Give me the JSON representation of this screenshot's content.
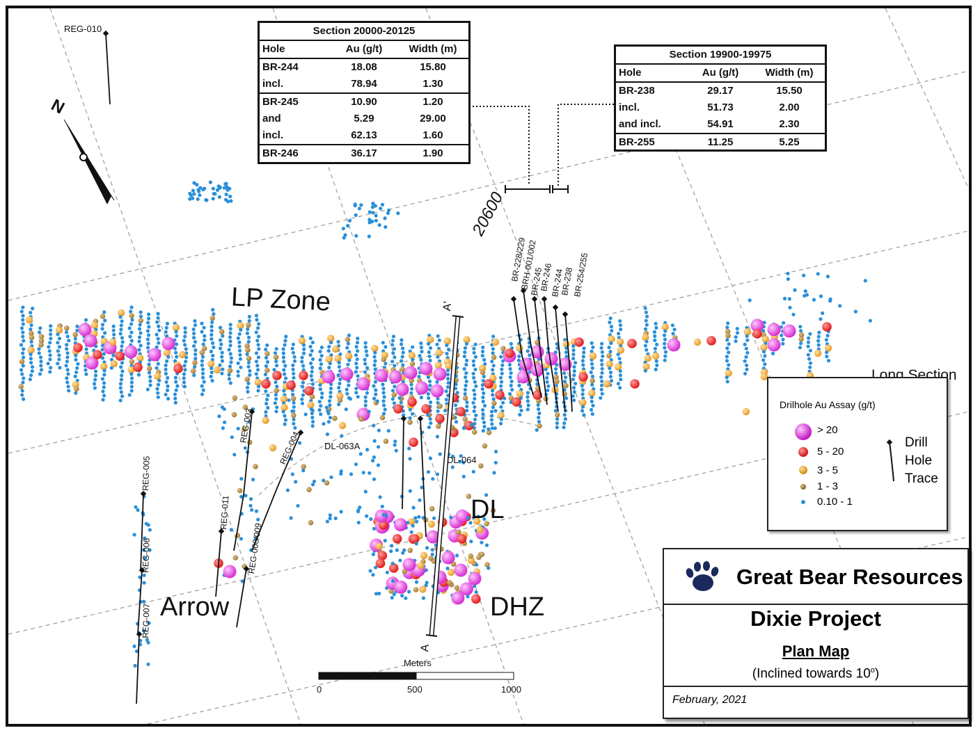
{
  "colors": {
    "gt20": "#d62fd0",
    "r5_20": "#e01b1b",
    "r3_5": "#e79a28",
    "r1_3": "#a07a35",
    "r01_1": "#2a8fd8",
    "grid": "#9a9a9a"
  },
  "table_left": {
    "title": "Section 20000-20125",
    "headers": [
      "Hole",
      "Au (g/t)",
      "Width (m)"
    ],
    "rows": [
      [
        "BR-244",
        "18.08",
        "15.80"
      ],
      [
        "incl.",
        "78.94",
        "1.30"
      ],
      [
        "BR-245",
        "10.90",
        "1.20"
      ],
      [
        "and",
        "5.29",
        "29.00"
      ],
      [
        "incl.",
        "62.13",
        "1.60"
      ],
      [
        "BR-246",
        "36.17",
        "1.90"
      ]
    ]
  },
  "table_right": {
    "title": "Section 19900-19975",
    "headers": [
      "Hole",
      "Au (g/t)",
      "Width (m)"
    ],
    "rows": [
      [
        "BR-238",
        "29.17",
        "15.50"
      ],
      [
        "incl.",
        "51.73",
        "2.00"
      ],
      [
        "and incl.",
        "54.91",
        "2.30"
      ],
      [
        "BR-255",
        "11.25",
        "5.25"
      ]
    ]
  },
  "zones": {
    "lp": "LP Zone",
    "dl": "DL",
    "dhz": "DHZ",
    "arrow": "Arrow"
  },
  "section_label": "20600",
  "section_a": "A",
  "section_a_prime": "A'",
  "north": "N",
  "holes": {
    "br228": "BR-228/229",
    "brh001": "BRH-001/002",
    "br245": "BR-245",
    "br246": "BR-246",
    "br244": "BR-244",
    "br238": "BR-238",
    "br254": "BR-254/255",
    "dl063a": "DL-063A",
    "dl064": "DL-064",
    "reg010": "REG-010",
    "reg003": "REG-003",
    "reg004": "REG-004",
    "reg005": "REG-005",
    "reg006": "REG-006",
    "reg007": "REG-007",
    "reg011": "REG-011",
    "reg008": "REG-008/009"
  },
  "scalebar": {
    "unit": "Meters",
    "ticks": [
      "0",
      "500",
      "1000"
    ]
  },
  "legend": {
    "long_section": "Long Section",
    "title": "Drilhole Au Assay (g/t)",
    "items": [
      {
        "label": "> 20",
        "class": "gt20"
      },
      {
        "label": "5 - 20",
        "class": "r5_20"
      },
      {
        "label": "3 - 5",
        "class": "r3_5"
      },
      {
        "label": "1 - 3",
        "class": "r1_3"
      },
      {
        "label": "0.10 - 1",
        "class": "r01_1"
      }
    ],
    "drill_trace": [
      "Drill",
      "Hole",
      "Trace"
    ]
  },
  "title_block": {
    "company": "Great Bear Resources",
    "project": "Dixie Project",
    "map_type": "Plan Map",
    "inclination": "(Inclined towards 10",
    "inclination_sup": "o",
    "inclination_end": ")",
    "date": "February, 2021"
  }
}
